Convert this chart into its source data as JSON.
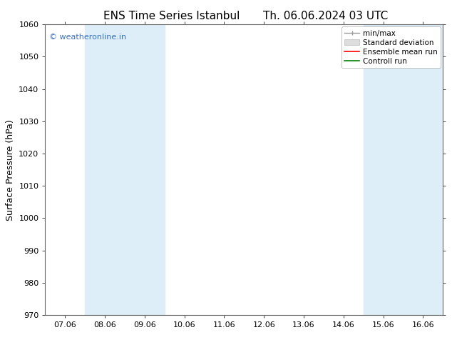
{
  "title_left": "ENS Time Series Istanbul",
  "title_right": "Th. 06.06.2024 03 UTC",
  "ylabel": "Surface Pressure (hPa)",
  "ylim": [
    970,
    1060
  ],
  "yticks": [
    970,
    980,
    990,
    1000,
    1010,
    1020,
    1030,
    1040,
    1050,
    1060
  ],
  "xtick_labels": [
    "07.06",
    "08.06",
    "09.06",
    "10.06",
    "11.06",
    "12.06",
    "13.06",
    "14.06",
    "15.06",
    "16.06"
  ],
  "xtick_positions": [
    0,
    1,
    2,
    3,
    4,
    5,
    6,
    7,
    8,
    9
  ],
  "xlim": [
    -0.5,
    9.5
  ],
  "shaded_regions": [
    {
      "x_start": 0.5,
      "x_end": 1.5,
      "color": "#ddeef8"
    },
    {
      "x_start": 1.5,
      "x_end": 2.5,
      "color": "#ddeef8"
    },
    {
      "x_start": 7.5,
      "x_end": 8.5,
      "color": "#ddeef8"
    },
    {
      "x_start": 8.5,
      "x_end": 9.5,
      "color": "#ddeef8"
    }
  ],
  "watermark_text": "© weatheronline.in",
  "watermark_color": "#3a6fbf",
  "background_color": "#ffffff",
  "title_fontsize": 11,
  "tick_fontsize": 8,
  "ylabel_fontsize": 9,
  "watermark_fontsize": 8,
  "legend_fontsize": 7.5,
  "legend_labels": [
    "min/max",
    "Standard deviation",
    "Ensemble mean run",
    "Controll run"
  ],
  "legend_colors": [
    "#999999",
    "#cccccc",
    "#ff0000",
    "#008000"
  ]
}
